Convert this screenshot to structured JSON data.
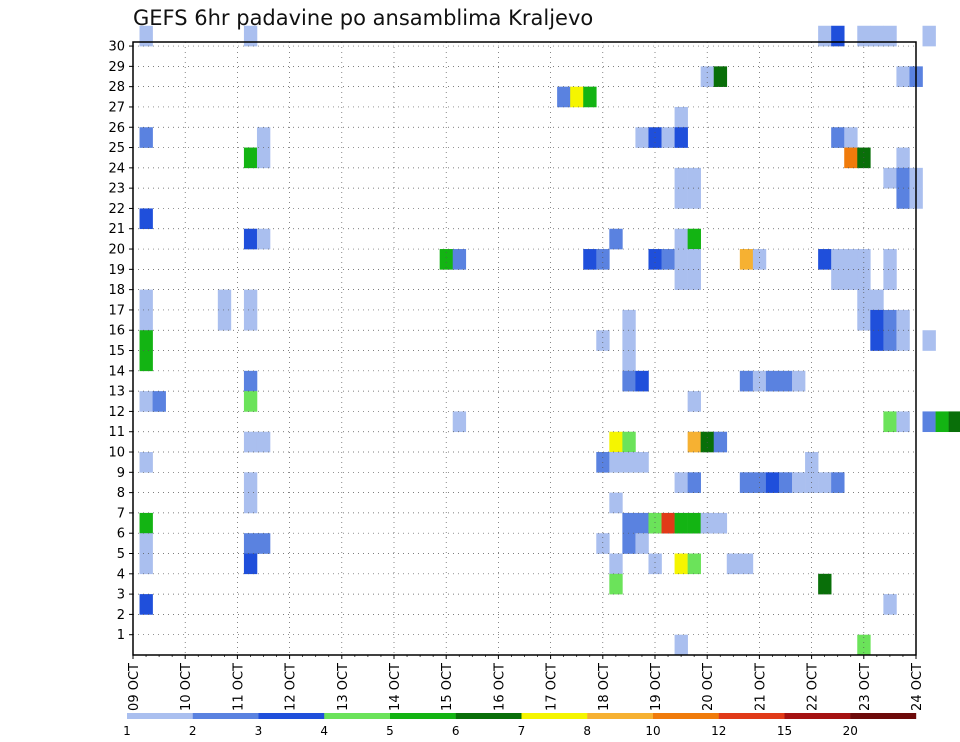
{
  "chart_data": {
    "type": "heatmap",
    "title": "GEFS 6hr padavine po ansamblima Kraljevo",
    "x_tick_labels": [
      "09 OCT",
      "10 OCT",
      "11 OCT",
      "12 OCT",
      "13 OCT",
      "14 OCT",
      "15 OCT",
      "16 OCT",
      "17 OCT",
      "18 OCT",
      "19 OCT",
      "20 OCT",
      "21 OCT",
      "22 OCT",
      "23 OCT",
      "24 OCT"
    ],
    "y_tick_labels": [
      "1",
      "2",
      "3",
      "4",
      "5",
      "6",
      "7",
      "8",
      "9",
      "10",
      "11",
      "12",
      "13",
      "14",
      "15",
      "16",
      "17",
      "18",
      "19",
      "20",
      "21",
      "22",
      "23",
      "24",
      "25",
      "26",
      "27",
      "28",
      "29",
      "30"
    ],
    "x_range": [
      "09 OCT 00Z",
      "24 OCT 00Z"
    ],
    "time_step_hours": 6,
    "y_range": [
      0,
      30
    ],
    "grid": "dotted",
    "colorbar": {
      "levels": [
        "1",
        "2",
        "3",
        "4",
        "5",
        "6",
        "7",
        "8",
        "10",
        "12",
        "15",
        "20"
      ],
      "colors": [
        "#aabfef",
        "#5a82e0",
        "#1f4fdb",
        "#6be35a",
        "#13b413",
        "#096f09",
        "#f5f500",
        "#f6b132",
        "#f07b0b",
        "#e13a18",
        "#a51111",
        "#6d0a0a"
      ]
    },
    "cells": [
      {
        "member": 30,
        "step": 1,
        "bin": 1
      },
      {
        "member": 30,
        "step": 9,
        "bin": 1
      },
      {
        "member": 30,
        "step": 53,
        "bin": 1
      },
      {
        "member": 30,
        "step": 54,
        "bin": 3
      },
      {
        "member": 30,
        "step": 56,
        "bin": 1
      },
      {
        "member": 30,
        "step": 57,
        "bin": 1
      },
      {
        "member": 30,
        "step": 58,
        "bin": 1
      },
      {
        "member": 30,
        "step": 61,
        "bin": 1
      },
      {
        "member": 28,
        "step": 44,
        "bin": 1
      },
      {
        "member": 28,
        "step": 45,
        "bin": 6
      },
      {
        "member": 28,
        "step": 59,
        "bin": 1
      },
      {
        "member": 28,
        "step": 60,
        "bin": 2
      },
      {
        "member": 27,
        "step": 33,
        "bin": 2
      },
      {
        "member": 27,
        "step": 34,
        "bin": 7
      },
      {
        "member": 27,
        "step": 35,
        "bin": 5
      },
      {
        "member": 26,
        "step": 42,
        "bin": 1
      },
      {
        "member": 25,
        "step": 1,
        "bin": 2
      },
      {
        "member": 25,
        "step": 10,
        "bin": 1
      },
      {
        "member": 25,
        "step": 39,
        "bin": 1
      },
      {
        "member": 25,
        "step": 40,
        "bin": 3
      },
      {
        "member": 25,
        "step": 41,
        "bin": 1
      },
      {
        "member": 25,
        "step": 42,
        "bin": 3
      },
      {
        "member": 25,
        "step": 54,
        "bin": 2
      },
      {
        "member": 25,
        "step": 55,
        "bin": 1
      },
      {
        "member": 24,
        "step": 9,
        "bin": 5
      },
      {
        "member": 24,
        "step": 10,
        "bin": 1
      },
      {
        "member": 24,
        "step": 55,
        "bin": 9
      },
      {
        "member": 24,
        "step": 56,
        "bin": 6
      },
      {
        "member": 24,
        "step": 59,
        "bin": 1
      },
      {
        "member": 23,
        "step": 42,
        "bin": 1
      },
      {
        "member": 23,
        "step": 43,
        "bin": 1
      },
      {
        "member": 23,
        "step": 58,
        "bin": 1
      },
      {
        "member": 23,
        "step": 59,
        "bin": 2
      },
      {
        "member": 23,
        "step": 60,
        "bin": 1
      },
      {
        "member": 22,
        "step": 42,
        "bin": 1
      },
      {
        "member": 22,
        "step": 43,
        "bin": 1
      },
      {
        "member": 22,
        "step": 59,
        "bin": 2
      },
      {
        "member": 22,
        "step": 60,
        "bin": 1
      },
      {
        "member": 21,
        "step": 1,
        "bin": 3
      },
      {
        "member": 20,
        "step": 9,
        "bin": 3
      },
      {
        "member": 20,
        "step": 10,
        "bin": 1
      },
      {
        "member": 20,
        "step": 37,
        "bin": 2
      },
      {
        "member": 20,
        "step": 42,
        "bin": 1
      },
      {
        "member": 20,
        "step": 43,
        "bin": 5
      },
      {
        "member": 19,
        "step": 24,
        "bin": 5
      },
      {
        "member": 19,
        "step": 25,
        "bin": 2
      },
      {
        "member": 19,
        "step": 35,
        "bin": 3
      },
      {
        "member": 19,
        "step": 36,
        "bin": 2
      },
      {
        "member": 19,
        "step": 40,
        "bin": 3
      },
      {
        "member": 19,
        "step": 41,
        "bin": 2
      },
      {
        "member": 19,
        "step": 42,
        "bin": 1
      },
      {
        "member": 19,
        "step": 43,
        "bin": 1
      },
      {
        "member": 19,
        "step": 47,
        "bin": 8
      },
      {
        "member": 19,
        "step": 48,
        "bin": 1
      },
      {
        "member": 19,
        "step": 53,
        "bin": 3
      },
      {
        "member": 19,
        "step": 54,
        "bin": 1
      },
      {
        "member": 19,
        "step": 55,
        "bin": 1
      },
      {
        "member": 19,
        "step": 56,
        "bin": 1
      },
      {
        "member": 19,
        "step": 58,
        "bin": 1
      },
      {
        "member": 18,
        "step": 42,
        "bin": 1
      },
      {
        "member": 18,
        "step": 43,
        "bin": 1
      },
      {
        "member": 18,
        "step": 54,
        "bin": 1
      },
      {
        "member": 18,
        "step": 55,
        "bin": 1
      },
      {
        "member": 18,
        "step": 56,
        "bin": 1
      },
      {
        "member": 18,
        "step": 58,
        "bin": 1
      },
      {
        "member": 17,
        "step": 1,
        "bin": 1
      },
      {
        "member": 17,
        "step": 7,
        "bin": 1
      },
      {
        "member": 17,
        "step": 9,
        "bin": 1
      },
      {
        "member": 17,
        "step": 56,
        "bin": 1
      },
      {
        "member": 17,
        "step": 57,
        "bin": 1
      },
      {
        "member": 16,
        "step": 1,
        "bin": 1
      },
      {
        "member": 16,
        "step": 7,
        "bin": 1
      },
      {
        "member": 16,
        "step": 9,
        "bin": 1
      },
      {
        "member": 16,
        "step": 38,
        "bin": 1
      },
      {
        "member": 16,
        "step": 56,
        "bin": 1
      },
      {
        "member": 16,
        "step": 57,
        "bin": 3
      },
      {
        "member": 16,
        "step": 58,
        "bin": 2
      },
      {
        "member": 16,
        "step": 59,
        "bin": 1
      },
      {
        "member": 15,
        "step": 1,
        "bin": 5
      },
      {
        "member": 15,
        "step": 36,
        "bin": 1
      },
      {
        "member": 15,
        "step": 38,
        "bin": 1
      },
      {
        "member": 15,
        "step": 57,
        "bin": 3
      },
      {
        "member": 15,
        "step": 58,
        "bin": 2
      },
      {
        "member": 15,
        "step": 59,
        "bin": 1
      },
      {
        "member": 15,
        "step": 61,
        "bin": 1
      },
      {
        "member": 14,
        "step": 1,
        "bin": 5
      },
      {
        "member": 14,
        "step": 38,
        "bin": 1
      },
      {
        "member": 13,
        "step": 9,
        "bin": 2
      },
      {
        "member": 13,
        "step": 38,
        "bin": 2
      },
      {
        "member": 13,
        "step": 39,
        "bin": 3
      },
      {
        "member": 13,
        "step": 47,
        "bin": 2
      },
      {
        "member": 13,
        "step": 48,
        "bin": 1
      },
      {
        "member": 13,
        "step": 49,
        "bin": 2
      },
      {
        "member": 13,
        "step": 50,
        "bin": 2
      },
      {
        "member": 13,
        "step": 51,
        "bin": 1
      },
      {
        "member": 12,
        "step": 1,
        "bin": 1
      },
      {
        "member": 12,
        "step": 2,
        "bin": 2
      },
      {
        "member": 12,
        "step": 9,
        "bin": 4
      },
      {
        "member": 12,
        "step": 43,
        "bin": 1
      },
      {
        "member": 11,
        "step": 25,
        "bin": 1
      },
      {
        "member": 11,
        "step": 58,
        "bin": 4
      },
      {
        "member": 11,
        "step": 59,
        "bin": 1
      },
      {
        "member": 11,
        "step": 61,
        "bin": 2
      },
      {
        "member": 11,
        "step": 62,
        "bin": 5
      },
      {
        "member": 11,
        "step": 63,
        "bin": 6
      },
      {
        "member": 11,
        "step": 64,
        "bin": 9
      },
      {
        "member": 10,
        "step": 9,
        "bin": 1
      },
      {
        "member": 10,
        "step": 10,
        "bin": 1
      },
      {
        "member": 10,
        "step": 37,
        "bin": 7
      },
      {
        "member": 10,
        "step": 38,
        "bin": 4
      },
      {
        "member": 10,
        "step": 43,
        "bin": 8
      },
      {
        "member": 10,
        "step": 44,
        "bin": 6
      },
      {
        "member": 10,
        "step": 45,
        "bin": 2
      },
      {
        "member": 9,
        "step": 1,
        "bin": 1
      },
      {
        "member": 9,
        "step": 36,
        "bin": 2
      },
      {
        "member": 9,
        "step": 37,
        "bin": 1
      },
      {
        "member": 9,
        "step": 38,
        "bin": 1
      },
      {
        "member": 9,
        "step": 39,
        "bin": 1
      },
      {
        "member": 9,
        "step": 52,
        "bin": 1
      },
      {
        "member": 8,
        "step": 9,
        "bin": 1
      },
      {
        "member": 8,
        "step": 42,
        "bin": 1
      },
      {
        "member": 8,
        "step": 43,
        "bin": 2
      },
      {
        "member": 8,
        "step": 47,
        "bin": 2
      },
      {
        "member": 8,
        "step": 48,
        "bin": 2
      },
      {
        "member": 8,
        "step": 49,
        "bin": 3
      },
      {
        "member": 8,
        "step": 50,
        "bin": 2
      },
      {
        "member": 8,
        "step": 51,
        "bin": 1
      },
      {
        "member": 8,
        "step": 52,
        "bin": 1
      },
      {
        "member": 8,
        "step": 53,
        "bin": 1
      },
      {
        "member": 8,
        "step": 54,
        "bin": 2
      },
      {
        "member": 7,
        "step": 9,
        "bin": 1
      },
      {
        "member": 7,
        "step": 37,
        "bin": 1
      },
      {
        "member": 6,
        "step": 1,
        "bin": 5
      },
      {
        "member": 6,
        "step": 38,
        "bin": 2
      },
      {
        "member": 6,
        "step": 39,
        "bin": 2
      },
      {
        "member": 6,
        "step": 40,
        "bin": 4
      },
      {
        "member": 6,
        "step": 41,
        "bin": 10
      },
      {
        "member": 6,
        "step": 42,
        "bin": 5
      },
      {
        "member": 6,
        "step": 43,
        "bin": 5
      },
      {
        "member": 6,
        "step": 44,
        "bin": 1
      },
      {
        "member": 6,
        "step": 45,
        "bin": 1
      },
      {
        "member": 5,
        "step": 1,
        "bin": 1
      },
      {
        "member": 5,
        "step": 9,
        "bin": 2
      },
      {
        "member": 5,
        "step": 10,
        "bin": 2
      },
      {
        "member": 5,
        "step": 36,
        "bin": 1
      },
      {
        "member": 5,
        "step": 38,
        "bin": 2
      },
      {
        "member": 5,
        "step": 39,
        "bin": 1
      },
      {
        "member": 4,
        "step": 1,
        "bin": 1
      },
      {
        "member": 4,
        "step": 9,
        "bin": 3
      },
      {
        "member": 4,
        "step": 37,
        "bin": 1
      },
      {
        "member": 4,
        "step": 40,
        "bin": 1
      },
      {
        "member": 4,
        "step": 42,
        "bin": 7
      },
      {
        "member": 4,
        "step": 43,
        "bin": 4
      },
      {
        "member": 4,
        "step": 46,
        "bin": 1
      },
      {
        "member": 4,
        "step": 47,
        "bin": 1
      },
      {
        "member": 3,
        "step": 37,
        "bin": 4
      },
      {
        "member": 3,
        "step": 53,
        "bin": 6
      },
      {
        "member": 2,
        "step": 1,
        "bin": 3
      },
      {
        "member": 2,
        "step": 58,
        "bin": 1
      },
      {
        "member": 0,
        "step": 42,
        "bin": 1
      },
      {
        "member": 0,
        "step": 56,
        "bin": 4
      }
    ]
  }
}
